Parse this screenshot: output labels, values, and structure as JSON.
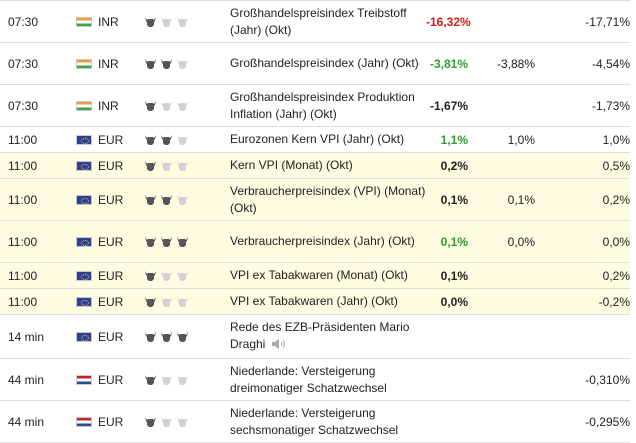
{
  "rows": [
    {
      "time": "07:30",
      "currency": "INR",
      "flag": "in",
      "importance": 1,
      "event": "Großhandelspreisindex Treibstoff (Jahr) (Okt)",
      "actual": "-16,32%",
      "actual_color": "red",
      "forecast": "",
      "previous": "-17,71%",
      "highlight": false,
      "height": 42
    },
    {
      "time": "07:30",
      "currency": "INR",
      "flag": "in",
      "importance": 2,
      "event": "Großhandelspreisindex (Jahr) (Okt)",
      "actual": "-3,81%",
      "actual_color": "green",
      "forecast": "-3,88%",
      "previous": "-4,54%",
      "highlight": false,
      "height": 42
    },
    {
      "time": "07:30",
      "currency": "INR",
      "flag": "in",
      "importance": 1,
      "event": "Großhandelspreisindex Produktion Inflation (Jahr) (Okt)",
      "actual": "-1,67%",
      "actual_color": "black",
      "forecast": "",
      "previous": "-1,73%",
      "highlight": false,
      "height": 42
    },
    {
      "time": "11:00",
      "currency": "EUR",
      "flag": "eu",
      "importance": 2,
      "event": "Eurozonen Kern VPI (Jahr) (Okt)",
      "actual": "1,1%",
      "actual_color": "green",
      "forecast": "1,0%",
      "previous": "1,0%",
      "highlight": false,
      "height": 26
    },
    {
      "time": "11:00",
      "currency": "EUR",
      "flag": "eu",
      "importance": 1,
      "event": "Kern VPI (Monat) (Okt)",
      "actual": "0,2%",
      "actual_color": "black",
      "forecast": "",
      "previous": "0,5%",
      "highlight": true,
      "height": 26
    },
    {
      "time": "11:00",
      "currency": "EUR",
      "flag": "eu",
      "importance": 2,
      "event": "Verbraucherpreisindex (VPI) (Monat) (Okt)",
      "actual": "0,1%",
      "actual_color": "black",
      "forecast": "0,1%",
      "previous": "0,2%",
      "highlight": true,
      "height": 42
    },
    {
      "time": "11:00",
      "currency": "EUR",
      "flag": "eu",
      "importance": 3,
      "event": "Verbraucherpreisindex (Jahr) (Okt)",
      "actual": "0,1%",
      "actual_color": "green",
      "forecast": "0,0%",
      "previous": "0,0%",
      "highlight": true,
      "height": 42
    },
    {
      "time": "11:00",
      "currency": "EUR",
      "flag": "eu",
      "importance": 1,
      "event": "VPI ex Tabakwaren (Monat) (Okt)",
      "actual": "0,1%",
      "actual_color": "black",
      "forecast": "",
      "previous": "0,2%",
      "highlight": true,
      "height": 26
    },
    {
      "time": "11:00",
      "currency": "EUR",
      "flag": "eu",
      "importance": 1,
      "event": "VPI ex Tabakwaren (Jahr) (Okt)",
      "actual": "0,0%",
      "actual_color": "black",
      "forecast": "",
      "previous": "-0,2%",
      "highlight": true,
      "height": 26
    },
    {
      "time": "14 min",
      "currency": "EUR",
      "flag": "eu",
      "importance": 3,
      "event": "Rede des EZB-Präsidenten Mario Draghi",
      "speaker_icon": "speaker-icon",
      "actual": "",
      "actual_color": "black",
      "forecast": "",
      "previous": "",
      "highlight": false,
      "height": 44
    },
    {
      "time": "44 min",
      "currency": "EUR",
      "flag": "nl",
      "importance": 1,
      "event": "Niederlande: Versteigerung dreimonatiger Schatzwechsel",
      "actual": "",
      "actual_color": "black",
      "forecast": "",
      "previous": "-0,310%",
      "highlight": false,
      "height": 42
    },
    {
      "time": "44 min",
      "currency": "EUR",
      "flag": "nl",
      "importance": 1,
      "event": "Niederlande: Versteigerung sechsmonatiger Schatzwechsel",
      "actual": "",
      "actual_color": "black",
      "forecast": "",
      "previous": "-0,295%",
      "highlight": false,
      "height": 42
    }
  ],
  "colors": {
    "red": "#d61a1a",
    "green": "#2aa12a",
    "highlight": "#fdfbe0",
    "border": "#dddddd"
  },
  "icons": {
    "importance": "bull-icon",
    "speaker": "speaker-icon"
  }
}
